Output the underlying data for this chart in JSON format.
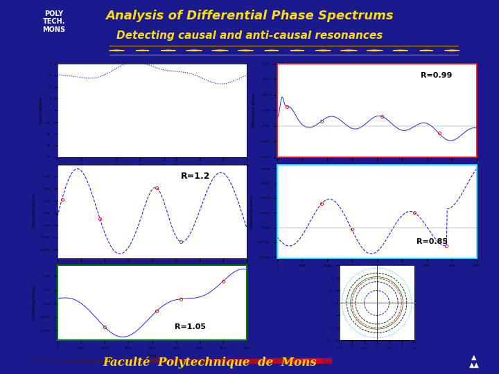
{
  "title1": "Analysis of Differential Phase Spectrums",
  "title2": "Detecting causal and anti-causal resonances",
  "footer": "Faculté  Polytechnique  de  Mons",
  "bg_dark": "#1a1a8c",
  "bg_header": "#2222aa",
  "label_R099": "R=0.99",
  "label_R12": "R=1.2",
  "label_R085": "R=0.85",
  "label_R105": "R=1.05",
  "title_color": "#ffdd00",
  "footer_text_color": "#ffdd00",
  "diamond_color": "#FFD700",
  "diamond_line_color": "#cc9900"
}
